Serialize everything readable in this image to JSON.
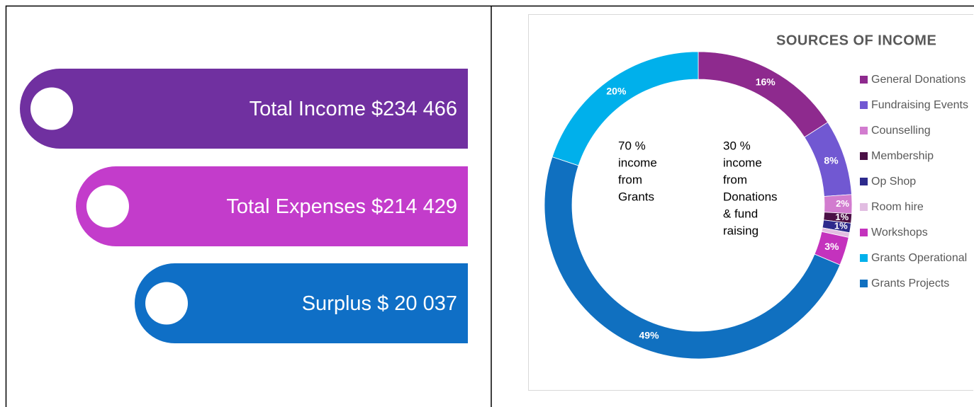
{
  "summary": {
    "items": [
      {
        "label": "Total Income $234 466",
        "color": "#7030a0"
      },
      {
        "label": "Total Expenses $214 429",
        "color": "#c33ccb"
      },
      {
        "label": "Surplus $ 20 037",
        "color": "#0f6fc6"
      }
    ]
  },
  "chart_data": {
    "type": "donut",
    "title": "SOURCES OF INCOME",
    "categories": [
      "General Donations",
      "Fundraising Events",
      "Counselling",
      "Membership",
      "Op Shop",
      "Room hire",
      "Workshops",
      "Grants Projects",
      "Grants Operational"
    ],
    "values": [
      16,
      8,
      2,
      1,
      1,
      0.5,
      3,
      49,
      20
    ],
    "value_labels": [
      "16%",
      "8%",
      "2%",
      "1%",
      "1%",
      null,
      "3%",
      "49%",
      "20%"
    ],
    "colors": [
      "#8e2a8e",
      "#7158d2",
      "#d27ccf",
      "#4b1046",
      "#2d2a8c",
      "#e2bde2",
      "#c432bd",
      "#1070c0",
      "#00b0eb"
    ],
    "legend_order": [
      0,
      1,
      2,
      3,
      4,
      5,
      6,
      8,
      7
    ],
    "annotations": [
      {
        "lines": [
          "70 %",
          "income",
          "from",
          "Grants"
        ]
      },
      {
        "lines": [
          "30 %",
          "income",
          "from",
          "Donations",
          "& fund",
          "raising"
        ]
      }
    ]
  }
}
